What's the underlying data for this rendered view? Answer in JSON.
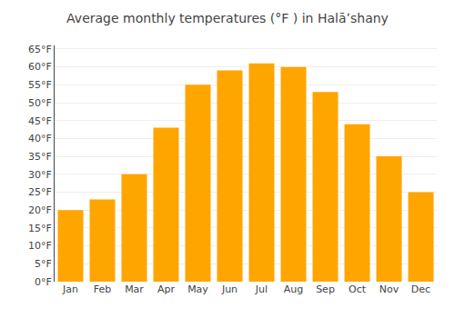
{
  "chart_data": {
    "type": "bar",
    "title": "Average monthly temperatures (°F ) in Halāʼshany",
    "categories": [
      "Jan",
      "Feb",
      "Mar",
      "Apr",
      "May",
      "Jun",
      "Jul",
      "Aug",
      "Sep",
      "Oct",
      "Nov",
      "Dec"
    ],
    "values": [
      20,
      23,
      30,
      43,
      55,
      59,
      61,
      60,
      53,
      44,
      35,
      25
    ],
    "color": "#FFA500",
    "ylim": [
      0,
      66
    ],
    "yticks": [
      {
        "value": 0,
        "label": "0°F"
      },
      {
        "value": 5,
        "label": "5°F"
      },
      {
        "value": 10,
        "label": "10°F"
      },
      {
        "value": 15,
        "label": "15°F"
      },
      {
        "value": 20,
        "label": "20°F"
      },
      {
        "value": 25,
        "label": "25°F"
      },
      {
        "value": 30,
        "label": "30°F"
      },
      {
        "value": 35,
        "label": "35°F"
      },
      {
        "value": 40,
        "label": "40°F"
      },
      {
        "value": 45,
        "label": "45°F"
      },
      {
        "value": 50,
        "label": "50°F"
      },
      {
        "value": 55,
        "label": "55°F"
      },
      {
        "value": 60,
        "label": "60°F"
      },
      {
        "value": 65,
        "label": "65°F"
      }
    ],
    "grid": true
  }
}
